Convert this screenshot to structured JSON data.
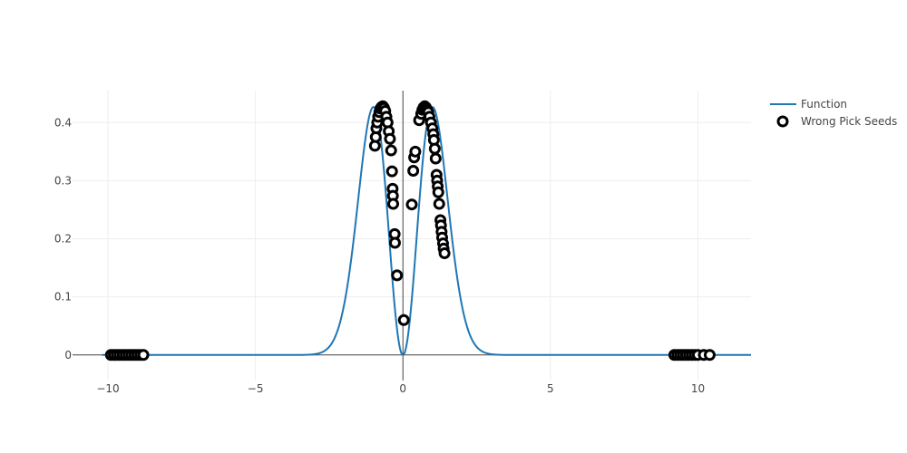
{
  "chart_data": {
    "type": "scatter",
    "x_range": [
      -11.2,
      11.8
    ],
    "y_range": [
      -0.044,
      0.455
    ],
    "grid": true,
    "legend_placement": "top-right",
    "x_ticks": [
      {
        "value": -10,
        "label": "−10"
      },
      {
        "value": -5,
        "label": "−5"
      },
      {
        "value": 0,
        "label": "0"
      },
      {
        "value": 5,
        "label": "5"
      },
      {
        "value": 10,
        "label": "10"
      }
    ],
    "y_ticks": [
      {
        "value": 0,
        "label": "0"
      },
      {
        "value": 0.1,
        "label": "0.1"
      },
      {
        "value": 0.2,
        "label": "0.2"
      },
      {
        "value": 0.3,
        "label": "0.3"
      },
      {
        "value": 0.4,
        "label": "0.4"
      }
    ],
    "series": [
      {
        "name": "Function",
        "kind": "line",
        "color": "#1f77b4",
        "formula": "x^2 * exp(-x^2) * 1.16",
        "x_domain": [
          -10.2,
          11.8
        ]
      },
      {
        "name": "Wrong Pick Seeds",
        "kind": "markers",
        "color": "#000000",
        "points": [
          {
            "x": -9.9,
            "y": 0
          },
          {
            "x": -9.8,
            "y": 0
          },
          {
            "x": -9.7,
            "y": 0
          },
          {
            "x": -9.6,
            "y": 0
          },
          {
            "x": -9.5,
            "y": 0
          },
          {
            "x": -9.4,
            "y": 0
          },
          {
            "x": -9.3,
            "y": 0
          },
          {
            "x": -9.2,
            "y": 0
          },
          {
            "x": -9.1,
            "y": 0
          },
          {
            "x": -9.0,
            "y": 0
          },
          {
            "x": -8.9,
            "y": 0
          },
          {
            "x": -8.8,
            "y": 0
          },
          {
            "x": -0.95,
            "y": 0.36
          },
          {
            "x": -0.92,
            "y": 0.375
          },
          {
            "x": -0.9,
            "y": 0.39
          },
          {
            "x": -0.87,
            "y": 0.4
          },
          {
            "x": -0.84,
            "y": 0.41
          },
          {
            "x": -0.8,
            "y": 0.418
          },
          {
            "x": -0.76,
            "y": 0.424
          },
          {
            "x": -0.72,
            "y": 0.427
          },
          {
            "x": -0.68,
            "y": 0.428
          },
          {
            "x": -0.64,
            "y": 0.425
          },
          {
            "x": -0.6,
            "y": 0.42
          },
          {
            "x": -0.56,
            "y": 0.41
          },
          {
            "x": -0.52,
            "y": 0.4
          },
          {
            "x": -0.48,
            "y": 0.385
          },
          {
            "x": -0.44,
            "y": 0.372
          },
          {
            "x": -0.4,
            "y": 0.352
          },
          {
            "x": -0.37,
            "y": 0.316
          },
          {
            "x": -0.35,
            "y": 0.286
          },
          {
            "x": -0.34,
            "y": 0.274
          },
          {
            "x": -0.33,
            "y": 0.26
          },
          {
            "x": -0.28,
            "y": 0.208
          },
          {
            "x": -0.27,
            "y": 0.193
          },
          {
            "x": -0.2,
            "y": 0.137
          },
          {
            "x": 0.03,
            "y": 0.06
          },
          {
            "x": 0.3,
            "y": 0.259
          },
          {
            "x": 0.35,
            "y": 0.317
          },
          {
            "x": 0.38,
            "y": 0.34
          },
          {
            "x": 0.42,
            "y": 0.35
          },
          {
            "x": 0.55,
            "y": 0.404
          },
          {
            "x": 0.62,
            "y": 0.415
          },
          {
            "x": 0.66,
            "y": 0.422
          },
          {
            "x": 0.7,
            "y": 0.426
          },
          {
            "x": 0.74,
            "y": 0.428
          },
          {
            "x": 0.78,
            "y": 0.426
          },
          {
            "x": 0.82,
            "y": 0.422
          },
          {
            "x": 0.86,
            "y": 0.418
          },
          {
            "x": 0.9,
            "y": 0.41
          },
          {
            "x": 0.95,
            "y": 0.4
          },
          {
            "x": 1.0,
            "y": 0.39
          },
          {
            "x": 1.03,
            "y": 0.38
          },
          {
            "x": 1.05,
            "y": 0.37
          },
          {
            "x": 1.08,
            "y": 0.355
          },
          {
            "x": 1.11,
            "y": 0.338
          },
          {
            "x": 1.14,
            "y": 0.31
          },
          {
            "x": 1.16,
            "y": 0.3
          },
          {
            "x": 1.18,
            "y": 0.29
          },
          {
            "x": 1.2,
            "y": 0.28
          },
          {
            "x": 1.23,
            "y": 0.26
          },
          {
            "x": 1.27,
            "y": 0.232
          },
          {
            "x": 1.29,
            "y": 0.223
          },
          {
            "x": 1.31,
            "y": 0.212
          },
          {
            "x": 1.33,
            "y": 0.202
          },
          {
            "x": 1.36,
            "y": 0.192
          },
          {
            "x": 1.38,
            "y": 0.183
          },
          {
            "x": 1.41,
            "y": 0.175
          },
          {
            "x": 9.2,
            "y": 0
          },
          {
            "x": 9.3,
            "y": 0
          },
          {
            "x": 9.4,
            "y": 0
          },
          {
            "x": 9.5,
            "y": 0
          },
          {
            "x": 9.6,
            "y": 0
          },
          {
            "x": 9.7,
            "y": 0
          },
          {
            "x": 9.8,
            "y": 0
          },
          {
            "x": 9.9,
            "y": 0
          },
          {
            "x": 10.0,
            "y": 0
          },
          {
            "x": 10.2,
            "y": 0
          },
          {
            "x": 10.4,
            "y": 0
          }
        ]
      }
    ]
  }
}
